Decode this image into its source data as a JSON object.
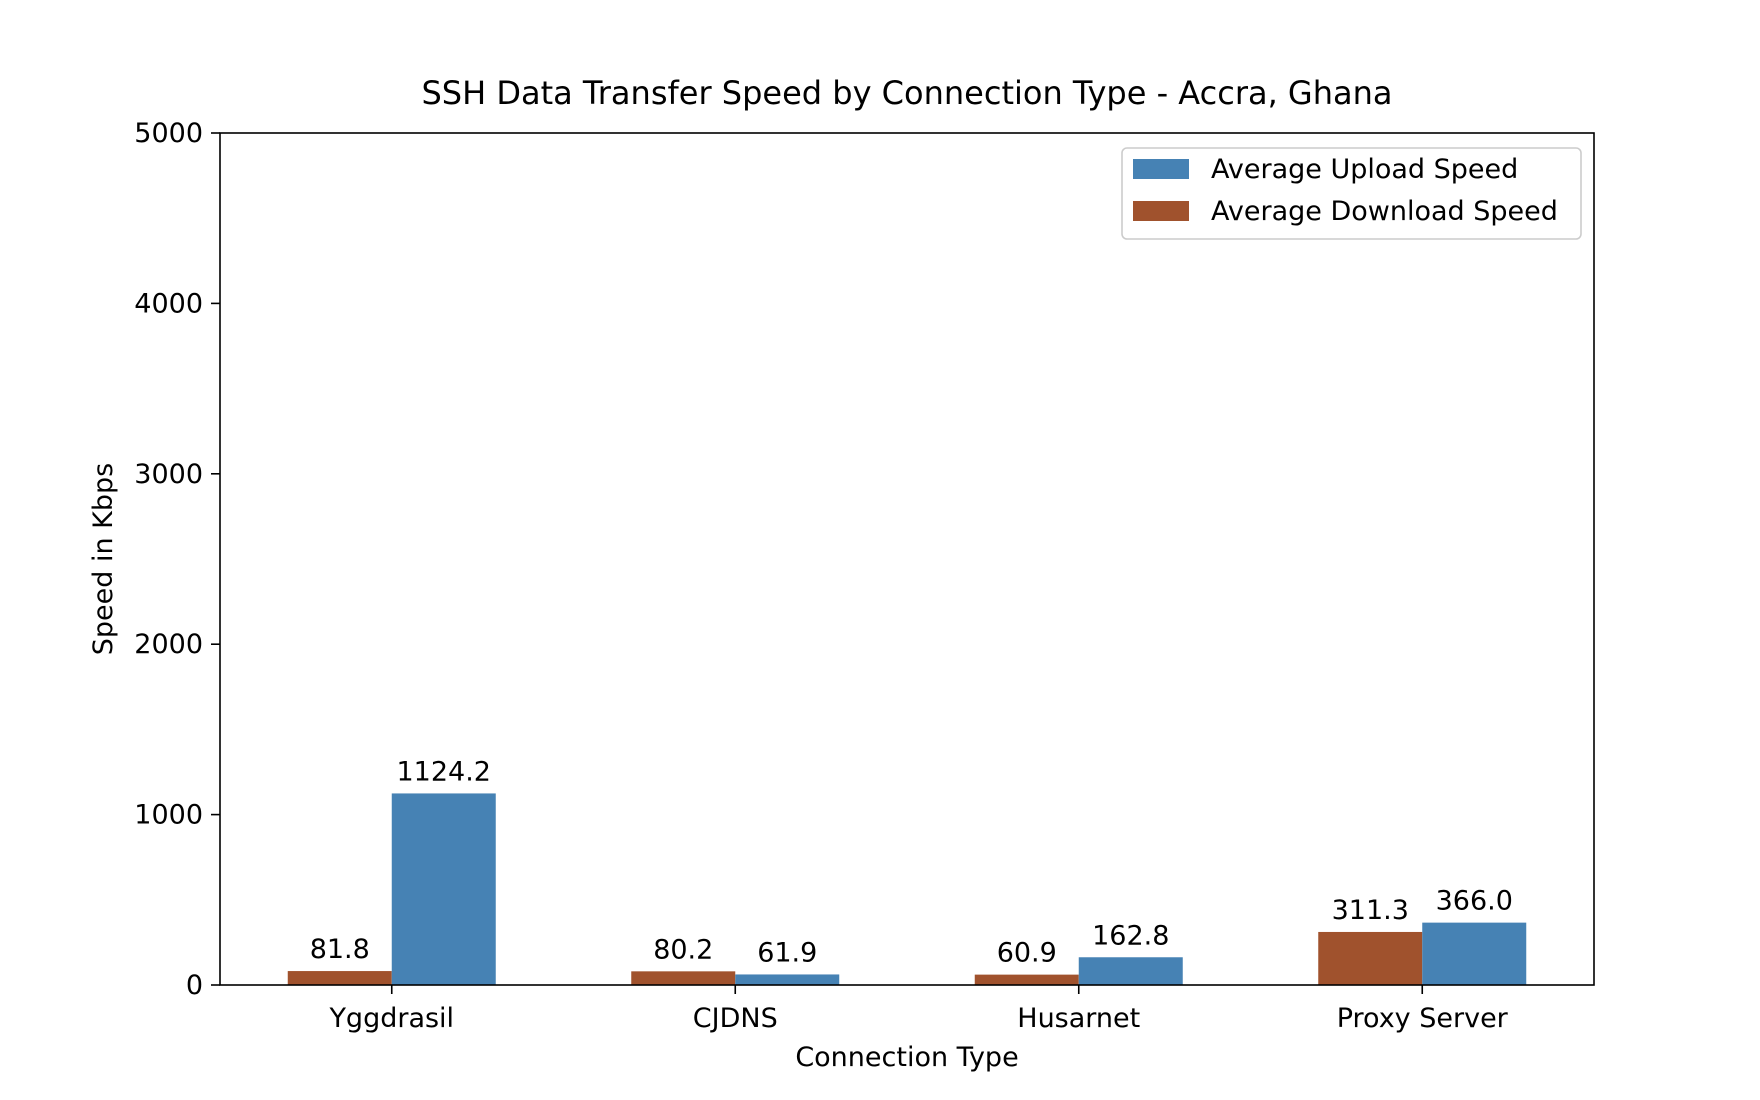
{
  "chart_data": {
    "type": "bar",
    "title": "SSH Data Transfer Speed by Connection Type - Accra, Ghana",
    "xlabel": "Connection Type",
    "ylabel": "Speed in Kbps",
    "categories": [
      "Yggdrasil",
      "CJDNS",
      "Husarnet",
      "Proxy Server"
    ],
    "ylim": [
      0,
      5000
    ],
    "yticks": [
      0,
      1000,
      2000,
      3000,
      4000,
      5000
    ],
    "grid": false,
    "legend_position": "top-right",
    "series": [
      {
        "name": "Average Download Speed",
        "color": "#a0522d",
        "values": [
          81.8,
          80.2,
          60.9,
          311.3
        ],
        "labels": [
          "81.8",
          "80.2",
          "60.9",
          "311.3"
        ]
      },
      {
        "name": "Average Upload Speed",
        "color": "#4682b4",
        "values": [
          1124.2,
          61.9,
          162.8,
          366.0
        ],
        "labels": [
          "1124.2",
          "61.9",
          "162.8",
          "366.0"
        ]
      }
    ],
    "legend_order": [
      "Average Upload Speed",
      "Average Download Speed"
    ]
  }
}
